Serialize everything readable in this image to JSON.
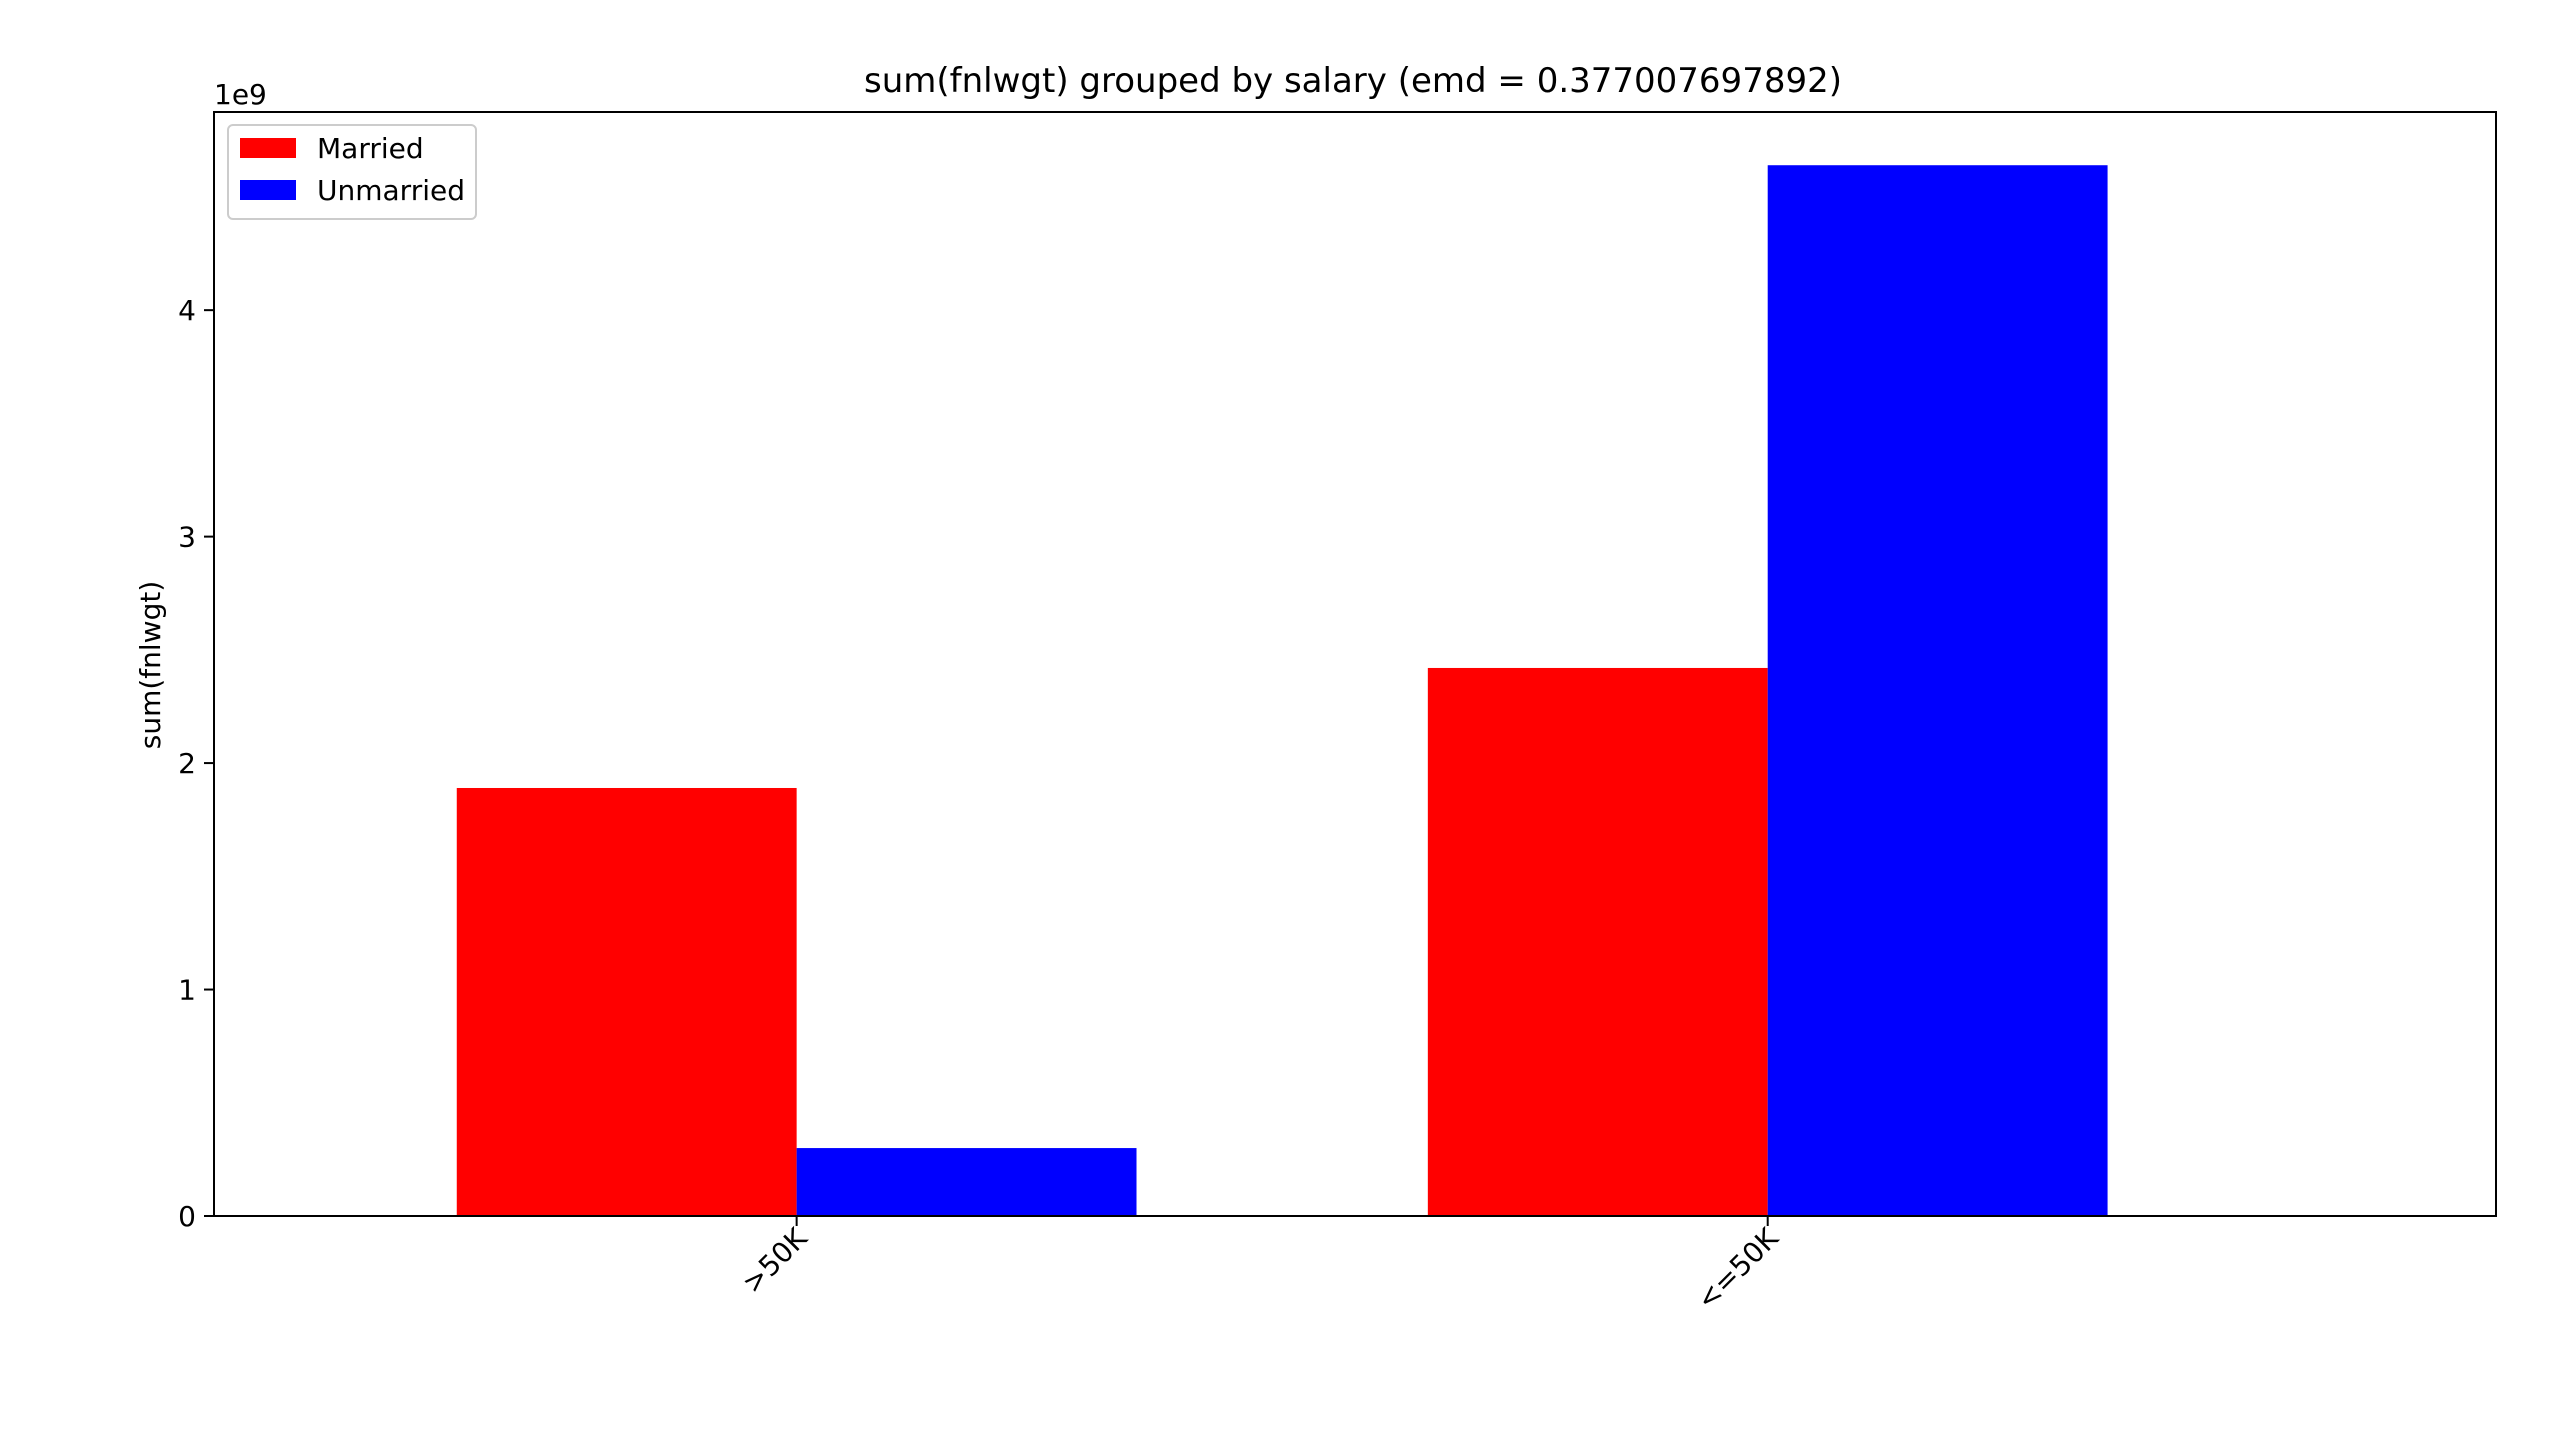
{
  "chart_data": {
    "type": "bar",
    "title": "sum(fnlwgt) grouped by salary (emd = 0.377007697892)",
    "xlabel": "",
    "ylabel": "sum(fnlwgt)",
    "y_offset_label": "1e9",
    "categories": [
      ">50K",
      "<=50K"
    ],
    "series": [
      {
        "name": "Married",
        "color": "#ff0000",
        "values": [
          1.89,
          2.42
        ]
      },
      {
        "name": "Unmarried",
        "color": "#0000ff",
        "values": [
          0.3,
          4.64
        ]
      }
    ],
    "ylim": [
      0,
      4.875
    ],
    "yticks": [
      0,
      1,
      2,
      3,
      4
    ],
    "xlim": [
      -0.6,
      1.75
    ],
    "legend": "top-left",
    "grid": false
  }
}
